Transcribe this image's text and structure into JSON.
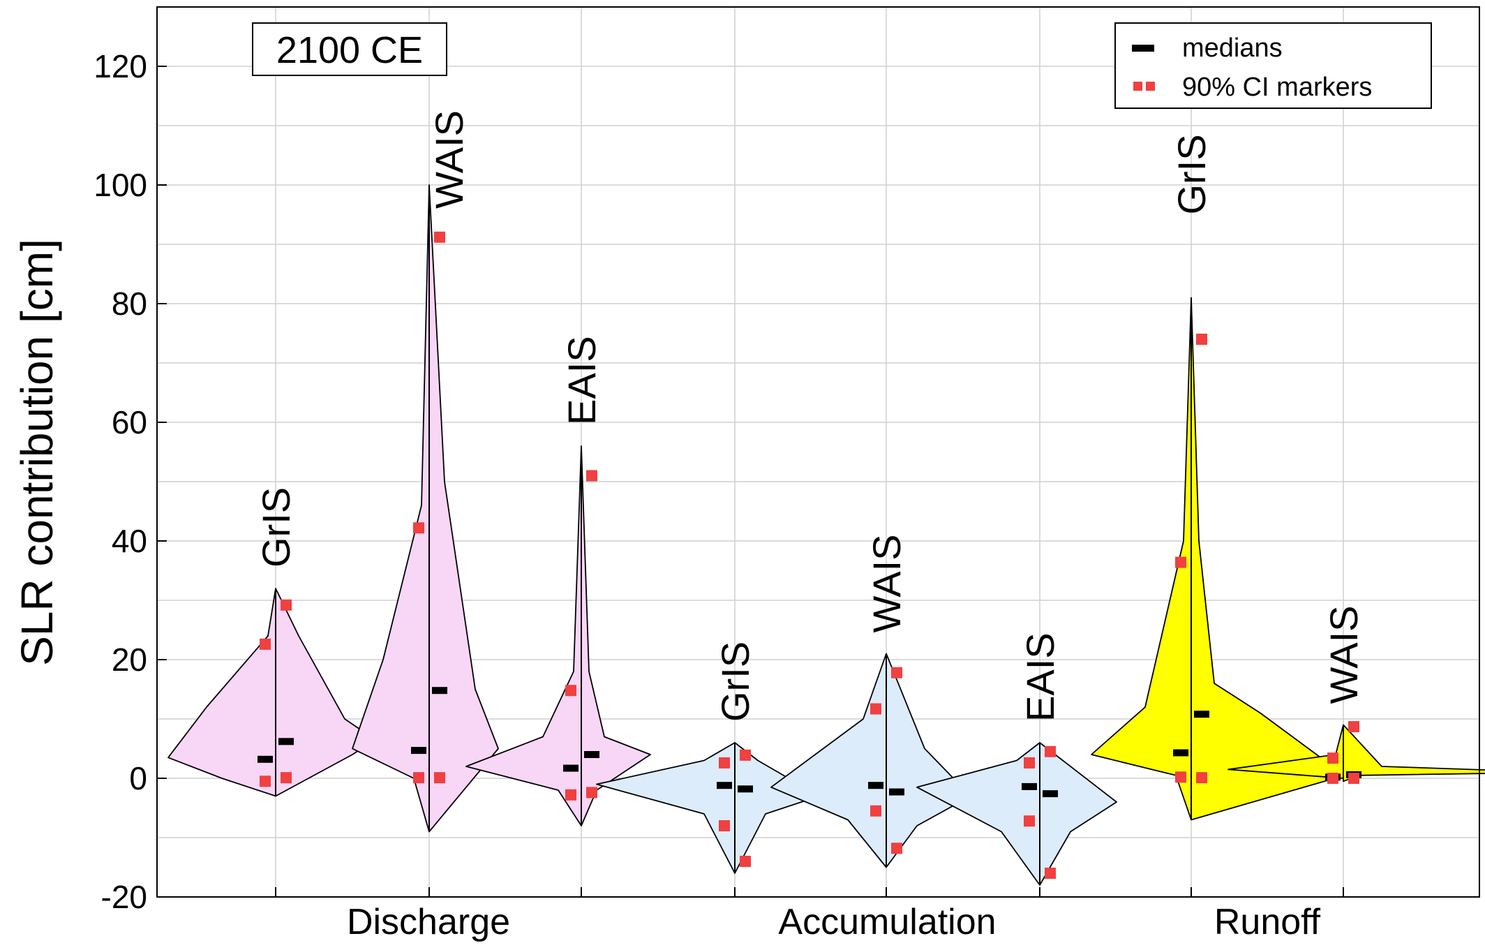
{
  "chart_data": {
    "type": "violin",
    "title": "",
    "ylabel": "SLR contribution [cm]",
    "xlabel": "",
    "ylim": [
      -20,
      130
    ],
    "yticks": [
      -20,
      0,
      20,
      40,
      60,
      80,
      100,
      120
    ],
    "grid": true,
    "annotation": "2100 CE",
    "groups": [
      "Discharge",
      "Accumulation",
      "Runoff"
    ],
    "legend": {
      "position": "top-right",
      "entries": [
        {
          "label": "medians",
          "color": "#000000"
        },
        {
          "label": "90% CI markers",
          "color": "#f04040"
        }
      ]
    },
    "colors": {
      "Discharge": "#f8d6f6",
      "Accumulation": "#dcecfa",
      "Runoff": "#ffff00",
      "ci_marker": "#f04040",
      "median": "#000000"
    },
    "violins": [
      {
        "group": "Discharge",
        "sheet": "GrIS",
        "x": 1,
        "left": [
          [
            -3,
            0
          ],
          [
            0,
            7
          ],
          [
            3.5,
            14
          ],
          [
            12,
            9
          ],
          [
            24,
            1
          ],
          [
            32,
            0
          ]
        ],
        "right": [
          [
            -3,
            0
          ],
          [
            4,
            10
          ],
          [
            6.5,
            13
          ],
          [
            10,
            9
          ],
          [
            24,
            3
          ],
          [
            32,
            0
          ]
        ],
        "medians": [
          3.2,
          6.2
        ],
        "ci_low": [
          -0.5,
          0.1
        ],
        "ci_high": [
          22.6,
          29.2
        ]
      },
      {
        "group": "Discharge",
        "sheet": "WAIS",
        "x": 2,
        "left": [
          [
            -9,
            0
          ],
          [
            0,
            2
          ],
          [
            5,
            10
          ],
          [
            20,
            6
          ],
          [
            46,
            1
          ],
          [
            100,
            0
          ]
        ],
        "right": [
          [
            -9,
            0
          ],
          [
            5,
            9
          ],
          [
            15,
            6
          ],
          [
            50,
            2
          ],
          [
            100,
            0
          ]
        ],
        "medians": [
          4.7,
          14.8
        ],
        "ci_low": [
          0.1,
          0.1
        ],
        "ci_high": [
          42.2,
          91.2
        ]
      },
      {
        "group": "Discharge",
        "sheet": "EAIS",
        "x": 3,
        "left": [
          [
            -8,
            0
          ],
          [
            -2,
            3
          ],
          [
            2,
            15
          ],
          [
            7,
            5
          ],
          [
            18,
            1
          ],
          [
            56,
            0
          ]
        ],
        "right": [
          [
            -8,
            0
          ],
          [
            -2,
            2
          ],
          [
            4,
            9
          ],
          [
            7,
            3
          ],
          [
            18,
            1
          ],
          [
            56,
            0
          ]
        ],
        "medians": [
          1.7,
          4.0
        ],
        "ci_low": [
          -2.8,
          -2.4
        ],
        "ci_high": [
          14.8,
          51.0
        ]
      },
      {
        "group": "Accumulation",
        "sheet": "GrIS",
        "x": 4,
        "left": [
          [
            -16,
            0
          ],
          [
            -6,
            4
          ],
          [
            -1,
            18
          ],
          [
            3,
            4
          ],
          [
            6,
            0
          ]
        ],
        "right": [
          [
            -16,
            0
          ],
          [
            -6,
            4
          ],
          [
            -3,
            11
          ],
          [
            3,
            3
          ],
          [
            6,
            0
          ]
        ],
        "medians": [
          -1.2,
          -1.8
        ],
        "ci_low": [
          -8.0,
          -14.0
        ],
        "ci_high": [
          2.6,
          3.9
        ]
      },
      {
        "group": "Accumulation",
        "sheet": "WAIS",
        "x": 5,
        "left": [
          [
            -15,
            0
          ],
          [
            -7,
            5
          ],
          [
            -1.5,
            15
          ],
          [
            10,
            3
          ],
          [
            21,
            0
          ]
        ],
        "right": [
          [
            -15,
            0
          ],
          [
            -8,
            4
          ],
          [
            -3,
            11
          ],
          [
            5,
            5
          ],
          [
            21,
            0
          ]
        ],
        "medians": [
          -1.2,
          -2.3
        ],
        "ci_low": [
          -5.5,
          -11.8
        ],
        "ci_high": [
          11.7,
          17.8
        ]
      },
      {
        "group": "Accumulation",
        "sheet": "EAIS",
        "x": 6,
        "left": [
          [
            -18,
            0
          ],
          [
            -9,
            5
          ],
          [
            -1.5,
            16
          ],
          [
            3,
            3
          ],
          [
            6,
            0
          ]
        ],
        "right": [
          [
            -18,
            0
          ],
          [
            -9,
            4
          ],
          [
            -4,
            10
          ],
          [
            3,
            3
          ],
          [
            6,
            0
          ]
        ],
        "medians": [
          -1.4,
          -2.6
        ],
        "ci_low": [
          -7.2,
          -16.0
        ],
        "ci_high": [
          2.6,
          4.5
        ]
      },
      {
        "group": "Runoff",
        "sheet": "GrIS",
        "x": 7,
        "left": [
          [
            -7,
            0
          ],
          [
            0.5,
            2
          ],
          [
            4,
            13
          ],
          [
            12,
            6
          ],
          [
            40,
            1
          ],
          [
            81,
            0
          ]
        ],
        "right": [
          [
            -7,
            0
          ],
          [
            0.5,
            20
          ],
          [
            11,
            9
          ],
          [
            16,
            3
          ],
          [
            40,
            1
          ],
          [
            81,
            0
          ]
        ],
        "medians": [
          4.3,
          10.8
        ],
        "ci_low": [
          0.2,
          0.1
        ],
        "ci_high": [
          36.4,
          74.0
        ]
      },
      {
        "group": "Runoff",
        "sheet": "WAIS",
        "x": 8,
        "left": [
          [
            0,
            0
          ],
          [
            1.5,
            15
          ],
          [
            4,
            1
          ],
          [
            9,
            0
          ]
        ],
        "right": [
          [
            -0.5,
            0
          ],
          [
            0.5,
            2
          ],
          [
            1,
            28
          ],
          [
            2,
            5
          ],
          [
            9,
            0
          ]
        ],
        "medians": [
          0.2,
          0.6
        ],
        "ci_low": [
          0.0,
          0.0
        ],
        "ci_high": [
          3.4,
          8.7
        ]
      }
    ]
  }
}
